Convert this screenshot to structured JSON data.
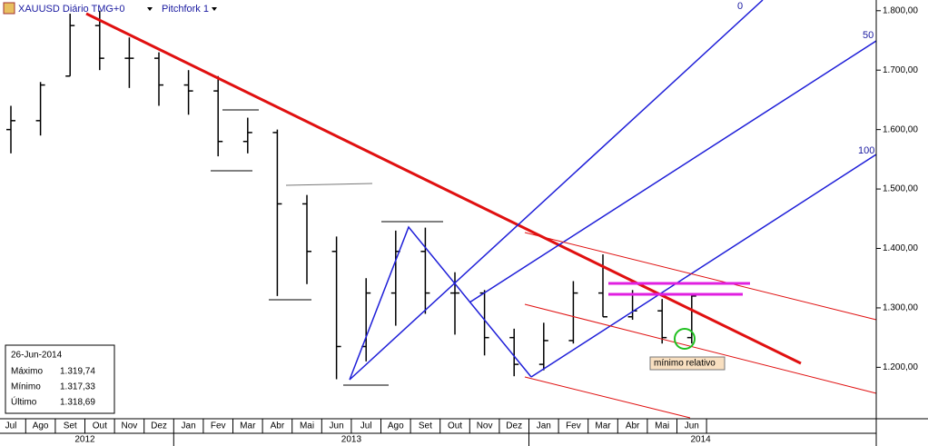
{
  "header": {
    "symbol": "XAUUSD Diário TMG+0",
    "tool": "Pitchfork 1"
  },
  "info": {
    "date": "26-Jun-2014",
    "rows": [
      [
        "Máximo",
        "1.319,74"
      ],
      [
        "Mínimo",
        "1.317,33"
      ],
      [
        "Último",
        "1.318,69"
      ]
    ]
  },
  "annotations": {
    "fork_0": "0",
    "fork_50": "50",
    "fork_100": "100",
    "note": "mínimo relativo"
  },
  "chart_data": {
    "type": "ohlc",
    "color": "#000000",
    "categories": [
      "Jul",
      "Ago",
      "Set",
      "Out",
      "Nov",
      "Dez",
      "Jan",
      "Fev",
      "Mar",
      "Abr",
      "Mai",
      "Jun",
      "Jul",
      "Ago",
      "Set",
      "Out",
      "Nov",
      "Dez",
      "Jan",
      "Fev",
      "Mar",
      "Abr",
      "Mai",
      "Jun"
    ],
    "years": [
      "2012",
      "2013",
      "2014"
    ],
    "open": [
      1600,
      1615,
      1690,
      1775,
      1720,
      1720,
      1675,
      1665,
      1580,
      1595,
      1475,
      1395,
      1235,
      1325,
      1395,
      1325,
      1325,
      1250,
      1205,
      1245,
      1325,
      1285,
      1295,
      1250
    ],
    "high": [
      1640,
      1680,
      1795,
      1800,
      1755,
      1730,
      1700,
      1690,
      1620,
      1600,
      1490,
      1420,
      1350,
      1430,
      1435,
      1360,
      1330,
      1265,
      1275,
      1345,
      1390,
      1330,
      1315,
      1325
    ],
    "low": [
      1560,
      1590,
      1690,
      1700,
      1670,
      1640,
      1625,
      1555,
      1560,
      1320,
      1340,
      1180,
      1210,
      1270,
      1290,
      1255,
      1220,
      1185,
      1195,
      1240,
      1285,
      1280,
      1240,
      1240
    ],
    "close": [
      1615,
      1675,
      1775,
      1720,
      1720,
      1675,
      1665,
      1580,
      1595,
      1475,
      1395,
      1235,
      1325,
      1395,
      1325,
      1325,
      1250,
      1205,
      1245,
      1325,
      1285,
      1295,
      1250,
      1320
    ],
    "ylim": [
      1115,
      1818
    ],
    "yticks": [
      {
        "value": 1200,
        "label": "1.200,00"
      },
      {
        "value": 1300,
        "label": "1.300,00"
      },
      {
        "value": 1400,
        "label": "1.400,00"
      },
      {
        "value": 1500,
        "label": "1.500,00"
      },
      {
        "value": 1600,
        "label": "1.600,00"
      },
      {
        "value": 1700,
        "label": "1.700,00"
      },
      {
        "value": 1800,
        "label": "1.800,00"
      }
    ]
  }
}
